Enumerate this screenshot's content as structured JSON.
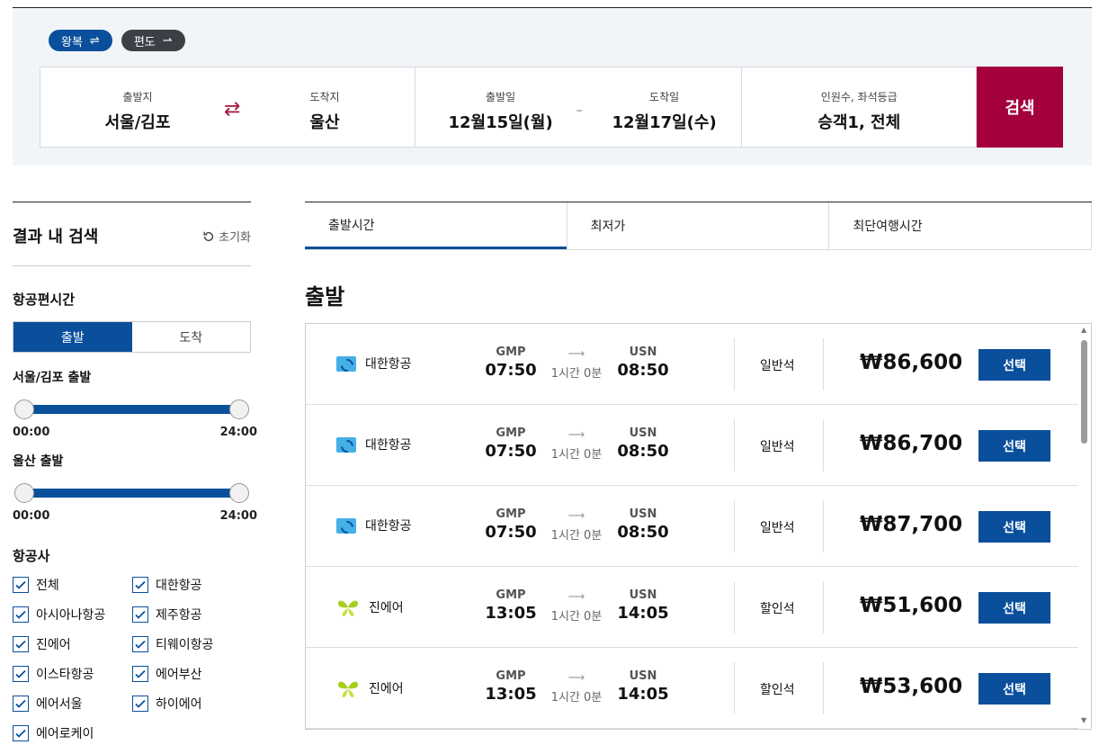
{
  "trip_types": [
    {
      "label": "왕복",
      "icon": "⇌"
    },
    {
      "label": "편도",
      "icon": "⇀"
    }
  ],
  "search": {
    "origin_label": "출발지",
    "origin": "서울/김포",
    "dest_label": "도착지",
    "dest": "울산",
    "swap_icon": "⇄",
    "dep_label": "출발일",
    "dep_date": "12월15일(월)",
    "date_sep": "–",
    "ret_label": "도착일",
    "ret_date": "12월17일(수)",
    "pax_label": "인원수, 좌석등급",
    "pax": "승객1, 전체",
    "button": "검색"
  },
  "sidebar": {
    "title": "결과 내 검색",
    "reset": "초기화",
    "time_section": "항공편시간",
    "toggle": [
      "출발",
      "도착"
    ],
    "dep_slider_title": "서울/김포 출발",
    "arr_slider_title": "울산 출발",
    "range_min": "00:00",
    "range_max": "24:00",
    "airline_section": "항공사",
    "airlines": [
      "전체",
      "대한항공",
      "아시아나항공",
      "제주항공",
      "진에어",
      "티웨이항공",
      "이스타항공",
      "에어부산",
      "에어서울",
      "하이에어",
      "에어로케이"
    ]
  },
  "sort_tabs": [
    "출발시간",
    "최저가",
    "최단여행시간"
  ],
  "section_title": "출발",
  "flights": [
    {
      "airline": "대한항공",
      "logo": "korean-air",
      "from": "GMP",
      "dep": "07:50",
      "duration": "1시간 0분",
      "to": "USN",
      "arr": "08:50",
      "cabin": "일반석",
      "price": "₩86,600",
      "button": "선택"
    },
    {
      "airline": "대한항공",
      "logo": "korean-air",
      "from": "GMP",
      "dep": "07:50",
      "duration": "1시간 0분",
      "to": "USN",
      "arr": "08:50",
      "cabin": "일반석",
      "price": "₩86,700",
      "button": "선택"
    },
    {
      "airline": "대한항공",
      "logo": "korean-air",
      "from": "GMP",
      "dep": "07:50",
      "duration": "1시간 0분",
      "to": "USN",
      "arr": "08:50",
      "cabin": "일반석",
      "price": "₩87,700",
      "button": "선택"
    },
    {
      "airline": "진에어",
      "logo": "jin-air",
      "from": "GMP",
      "dep": "13:05",
      "duration": "1시간 0분",
      "to": "USN",
      "arr": "14:05",
      "cabin": "할인석",
      "price": "₩51,600",
      "button": "선택"
    },
    {
      "airline": "진에어",
      "logo": "jin-air",
      "from": "GMP",
      "dep": "13:05",
      "duration": "1시간 0분",
      "to": "USN",
      "arr": "14:05",
      "cabin": "할인석",
      "price": "₩53,600",
      "button": "선택"
    }
  ],
  "colors": {
    "primary": "#0a4f9c",
    "search_button": "#a3003c",
    "swap": "#a3143c"
  }
}
